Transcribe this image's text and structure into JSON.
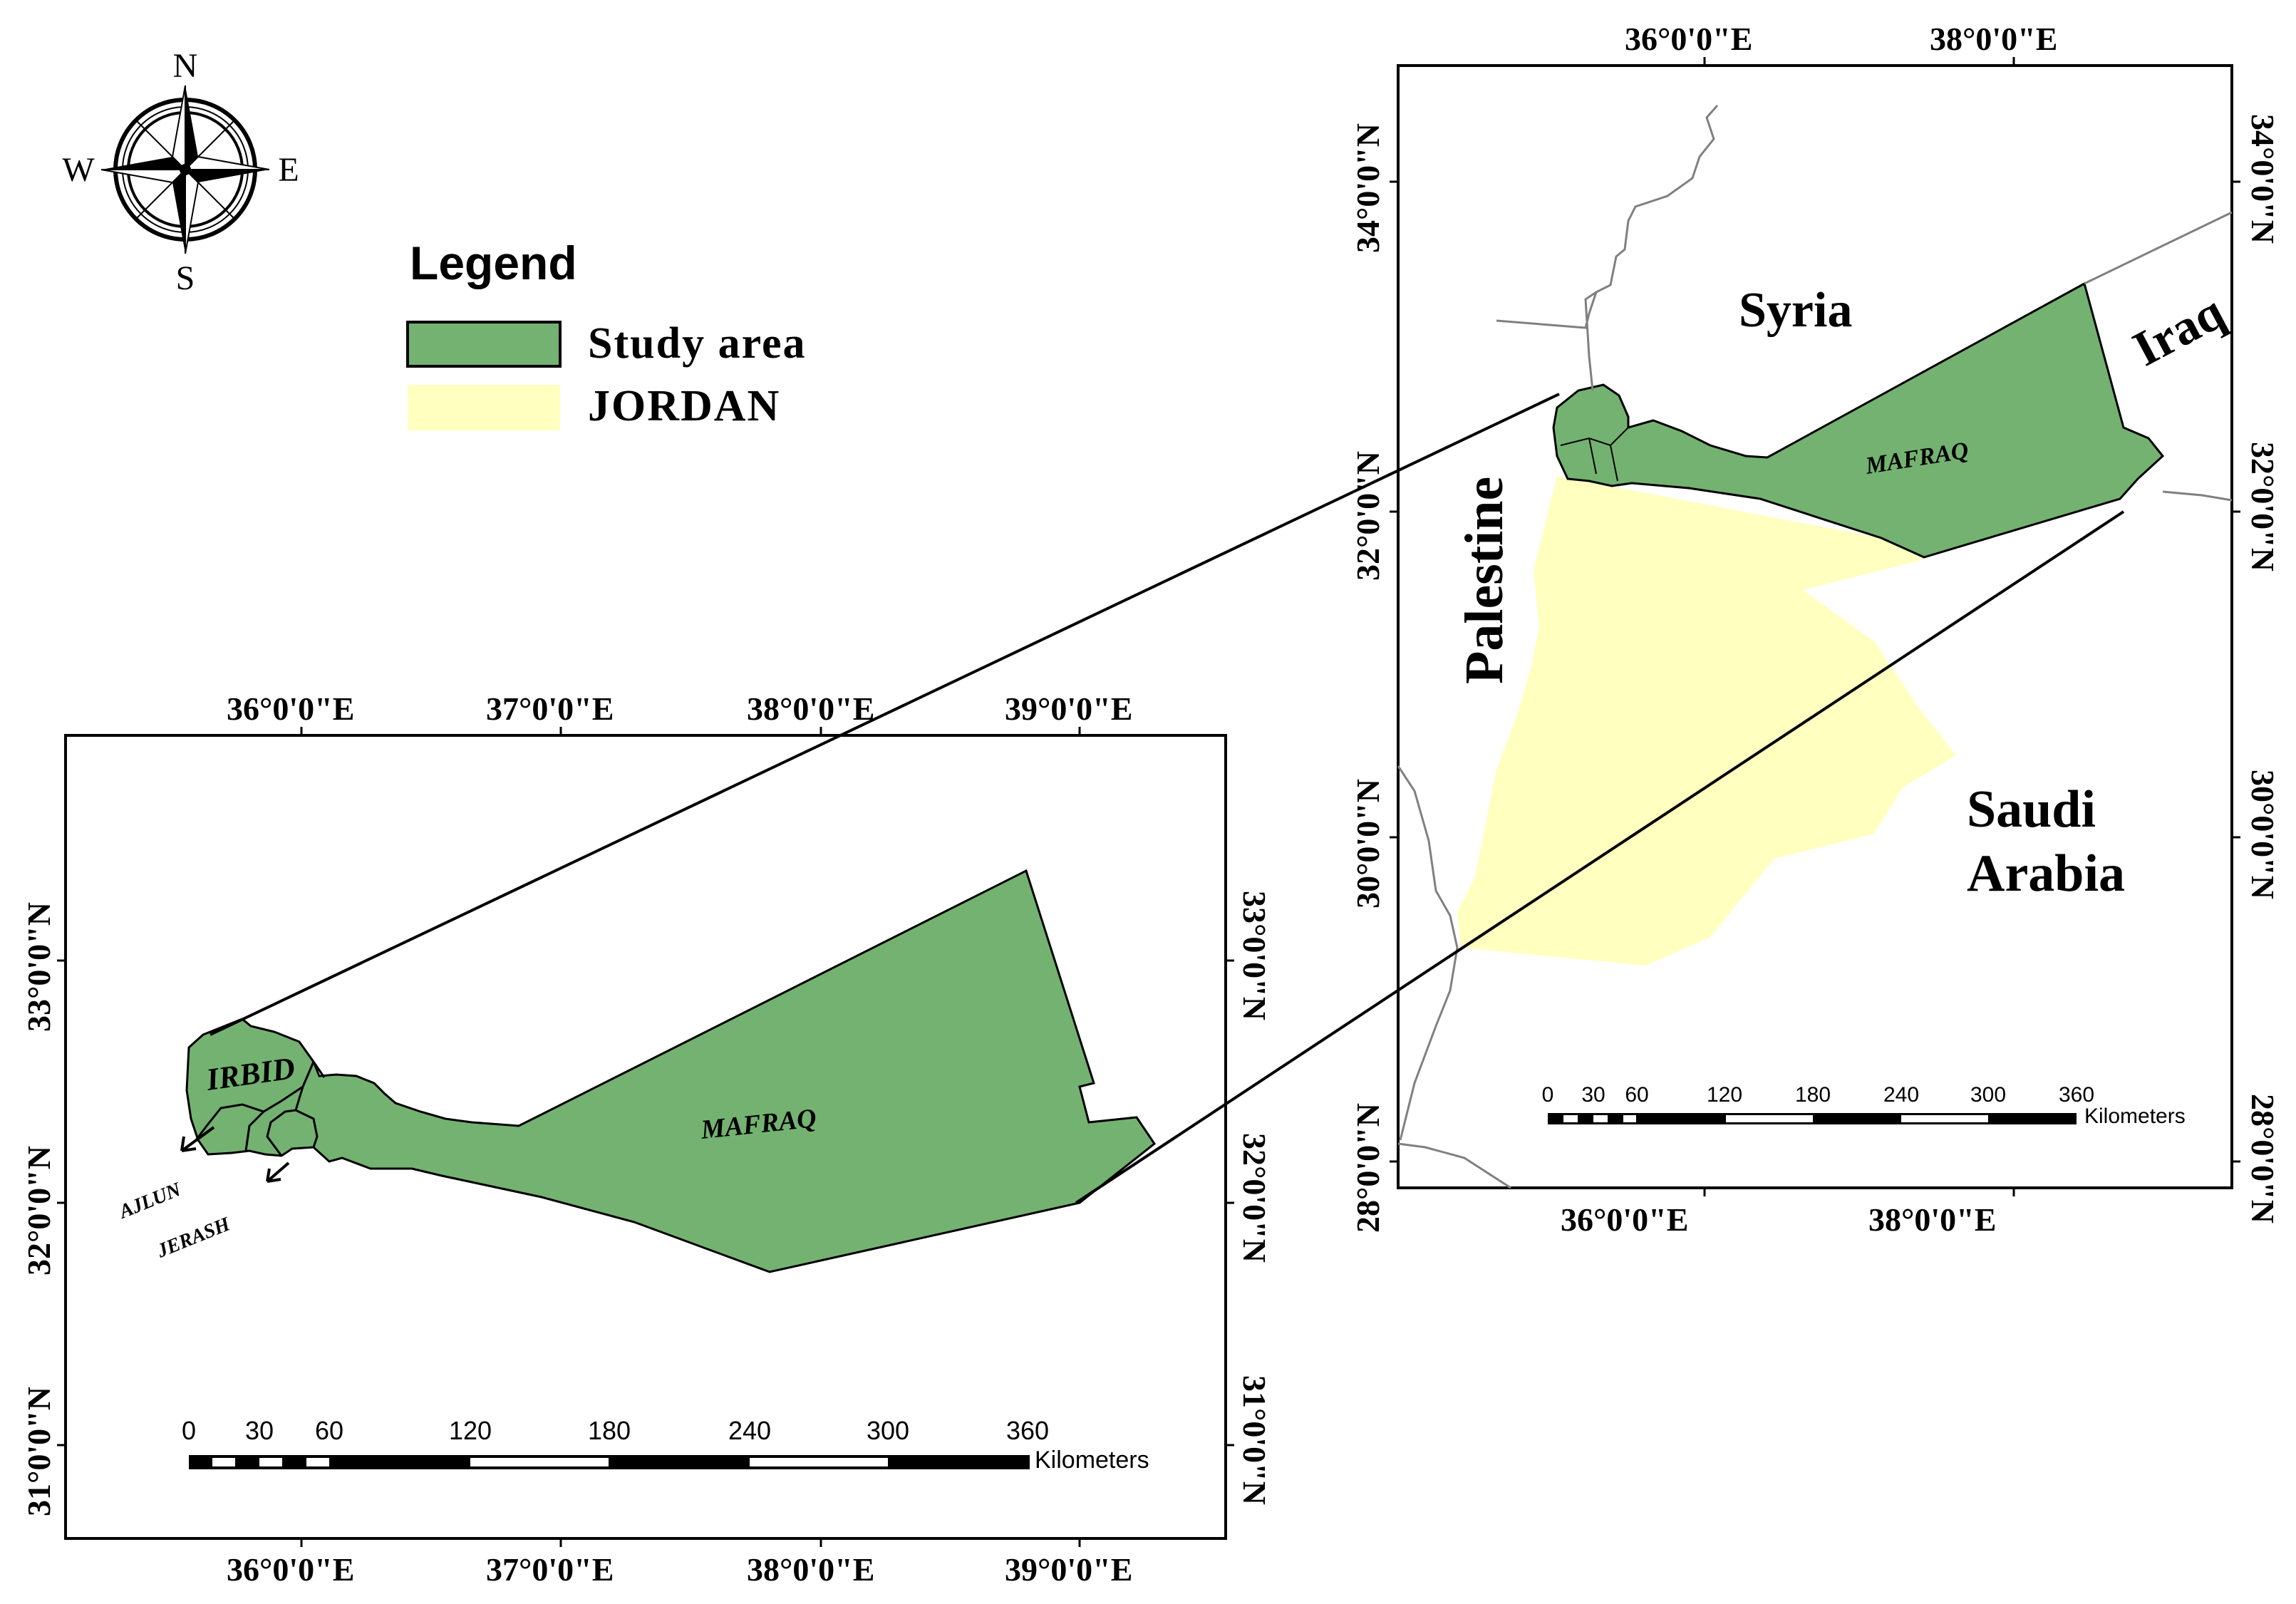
{
  "legend": {
    "title": "Legend",
    "items": [
      {
        "label": "Study area",
        "color": "#74b271"
      },
      {
        "label": "JORDAN",
        "color": "#ffffc0"
      }
    ]
  },
  "compass": {
    "north": "N",
    "south": "S",
    "east": "E",
    "west": "W"
  },
  "left_map": {
    "x_ticks": [
      "36°0'0\"E",
      "37°0'0\"E",
      "38°0'0\"E",
      "39°0'0\"E"
    ],
    "y_ticks": [
      "33°0'0\"N",
      "32°0'0\"N",
      "31°0'0\"N"
    ],
    "regions": [
      "IRBID",
      "MAFRAQ",
      "AJLUN",
      "JERASH"
    ],
    "scale": {
      "labels": [
        "0",
        "30",
        "60",
        "120",
        "180",
        "240",
        "300",
        "360"
      ],
      "unit": "Kilometers"
    }
  },
  "right_map": {
    "x_ticks": [
      "36°0'0\"E",
      "38°0'0\"E"
    ],
    "y_ticks": [
      "34°0'0\"N",
      "32°0'0\"N",
      "30°0'0\"N",
      "28°0'0\"N"
    ],
    "countries": [
      "Syria",
      "Iraq",
      "Palestine",
      "Saudi",
      "Arabia"
    ],
    "regions": [
      "MAFRAQ"
    ],
    "scale": {
      "labels": [
        "0",
        "30",
        "60",
        "120",
        "180",
        "240",
        "300",
        "360"
      ],
      "unit": "Kilometers"
    }
  },
  "colors": {
    "study_area": "#74b271",
    "jordan": "#ffffc0",
    "border": "#808080"
  }
}
